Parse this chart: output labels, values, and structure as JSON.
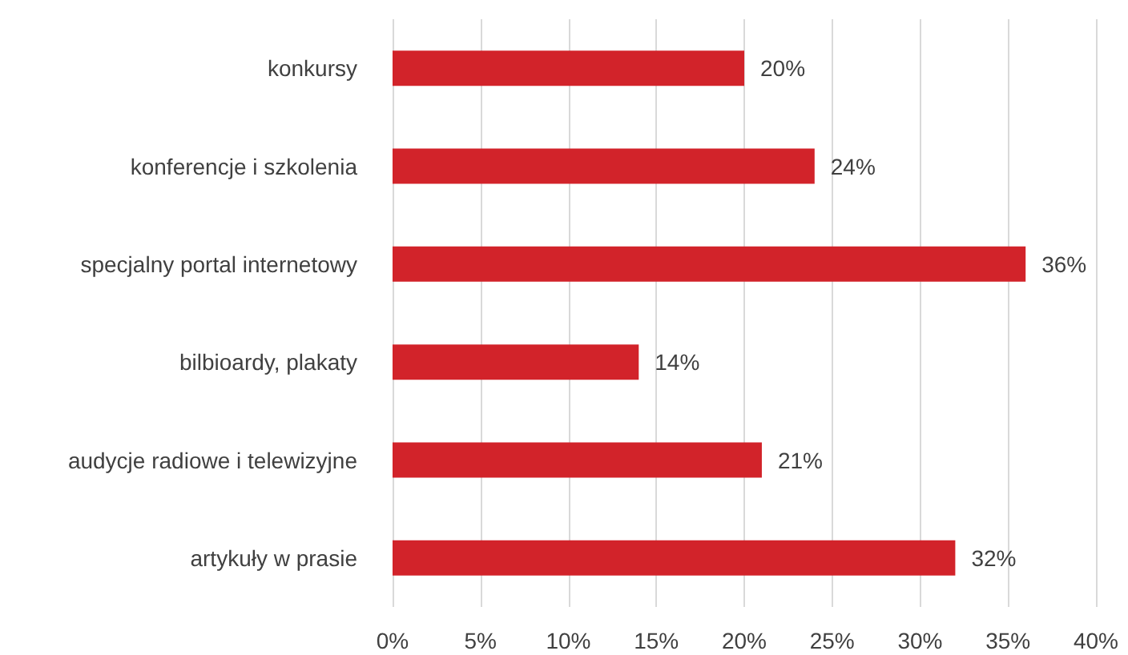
{
  "chart_data": {
    "type": "bar",
    "orientation": "horizontal",
    "categories": [
      "konkursy",
      "konferencje i szkolenia",
      "specjalny portal internetowy",
      "bilbioardy, plakaty",
      "audycje radiowe i telewizyjne",
      "artykuły w prasie"
    ],
    "values": [
      20,
      24,
      36,
      14,
      21,
      32
    ],
    "value_labels": [
      "20%",
      "24%",
      "36%",
      "14%",
      "21%",
      "32%"
    ],
    "color": "#d2232a",
    "xlim": [
      0,
      40
    ],
    "xticks": [
      {
        "value": 0,
        "label": "0%"
      },
      {
        "value": 5,
        "label": "5%"
      },
      {
        "value": 10,
        "label": "10%"
      },
      {
        "value": 15,
        "label": "15%"
      },
      {
        "value": 20,
        "label": "20%"
      },
      {
        "value": 25,
        "label": "25%"
      },
      {
        "value": 30,
        "label": "30%"
      },
      {
        "value": 35,
        "label": "35%"
      },
      {
        "value": 40,
        "label": "40%"
      }
    ],
    "grid": "x"
  }
}
